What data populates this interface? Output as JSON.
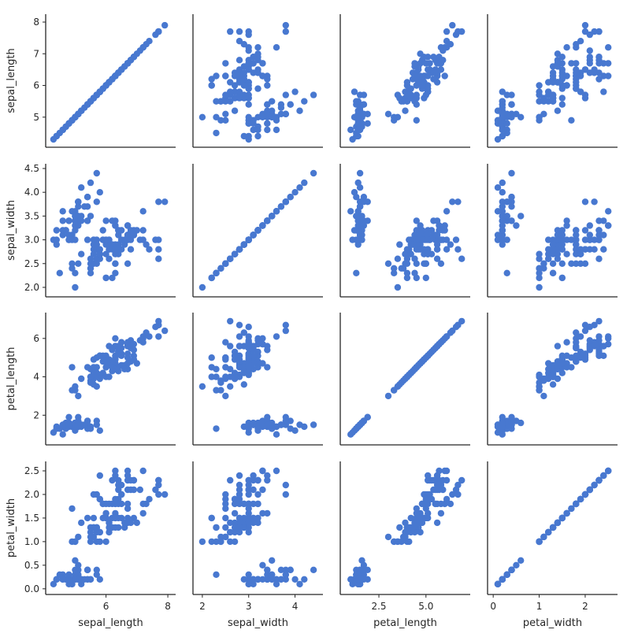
{
  "chart_data": {
    "type": "scatter",
    "kind": "pairgrid",
    "color": "#4878d0",
    "variables": [
      "sepal_length",
      "sepal_width",
      "petal_length",
      "petal_width"
    ],
    "limits": {
      "sepal_length": [
        4.2,
        8.1
      ],
      "sepal_width": [
        1.9,
        4.5
      ],
      "petal_length": [
        0.7,
        7.1
      ],
      "petal_width": [
        -0.02,
        2.6
      ]
    },
    "ticks": {
      "row": {
        "sepal_length": [
          "5",
          "6",
          "7",
          "8"
        ],
        "sepal_width": [
          "2.0",
          "2.5",
          "3.0",
          "3.5",
          "4.0",
          "4.5"
        ],
        "petal_length": [
          "2",
          "4",
          "6"
        ],
        "petal_width": [
          "0.0",
          "0.5",
          "1.0",
          "1.5",
          "2.0",
          "2.5"
        ]
      },
      "col": {
        "sepal_length": [
          "6",
          "8"
        ],
        "sepal_width": [
          "2",
          "3",
          "4"
        ],
        "petal_length": [
          "2.5",
          "5.0"
        ],
        "petal_width": [
          "0",
          "1",
          "2"
        ]
      }
    },
    "data": {
      "sepal_length": [
        5.1,
        4.9,
        4.7,
        4.6,
        5.0,
        5.4,
        4.6,
        5.0,
        4.4,
        4.9,
        5.4,
        4.8,
        4.8,
        4.3,
        5.8,
        5.7,
        5.4,
        5.1,
        5.7,
        5.1,
        5.4,
        5.1,
        4.6,
        5.1,
        4.8,
        5.0,
        5.0,
        5.2,
        5.2,
        4.7,
        4.8,
        5.4,
        5.2,
        5.5,
        4.9,
        5.0,
        5.5,
        4.9,
        4.4,
        5.1,
        5.0,
        4.5,
        4.4,
        5.0,
        5.1,
        4.8,
        5.1,
        4.6,
        5.3,
        5.0,
        7.0,
        6.4,
        6.9,
        5.5,
        6.5,
        5.7,
        6.3,
        4.9,
        6.6,
        5.2,
        5.0,
        5.9,
        6.0,
        6.1,
        5.6,
        6.7,
        5.6,
        5.8,
        6.2,
        5.6,
        5.9,
        6.1,
        6.3,
        6.1,
        6.4,
        6.6,
        6.8,
        6.7,
        6.0,
        5.7,
        5.5,
        5.5,
        5.8,
        6.0,
        5.4,
        6.0,
        6.7,
        6.3,
        5.6,
        5.5,
        5.5,
        6.1,
        5.8,
        5.0,
        5.6,
        5.7,
        5.7,
        6.2,
        5.1,
        5.7,
        6.3,
        5.8,
        7.1,
        6.3,
        6.5,
        7.6,
        4.9,
        7.3,
        6.7,
        7.2,
        6.5,
        6.4,
        6.8,
        5.7,
        5.8,
        6.4,
        6.5,
        7.7,
        7.7,
        6.0,
        6.9,
        5.6,
        7.7,
        6.3,
        6.7,
        7.2,
        6.2,
        6.1,
        6.4,
        7.2,
        7.4,
        7.9,
        6.4,
        6.3,
        6.1,
        7.7,
        6.3,
        6.4,
        6.0,
        6.9,
        6.7,
        6.9,
        5.8,
        6.8,
        6.7,
        6.7,
        6.3,
        6.5,
        6.2,
        5.9
      ],
      "sepal_width": [
        3.5,
        3.0,
        3.2,
        3.1,
        3.6,
        3.9,
        3.4,
        3.4,
        2.9,
        3.1,
        3.7,
        3.4,
        3.0,
        3.0,
        4.0,
        4.4,
        3.9,
        3.5,
        3.8,
        3.8,
        3.4,
        3.7,
        3.6,
        3.3,
        3.4,
        3.0,
        3.4,
        3.5,
        3.4,
        3.2,
        3.1,
        3.4,
        4.1,
        4.2,
        3.1,
        3.2,
        3.5,
        3.6,
        3.0,
        3.4,
        3.5,
        2.3,
        3.2,
        3.5,
        3.8,
        3.0,
        3.8,
        3.2,
        3.7,
        3.3,
        3.2,
        3.2,
        3.1,
        2.3,
        2.8,
        2.8,
        3.3,
        2.4,
        2.9,
        2.7,
        2.0,
        3.0,
        2.2,
        2.9,
        2.9,
        3.1,
        3.0,
        2.7,
        2.2,
        2.5,
        3.2,
        2.8,
        2.5,
        2.8,
        2.9,
        3.0,
        2.8,
        3.0,
        2.9,
        2.6,
        2.4,
        2.4,
        2.7,
        2.7,
        3.0,
        3.4,
        3.1,
        2.3,
        3.0,
        2.5,
        2.6,
        3.0,
        2.6,
        2.3,
        2.7,
        3.0,
        2.9,
        2.9,
        2.5,
        2.8,
        3.3,
        2.7,
        3.0,
        2.9,
        3.0,
        3.0,
        2.5,
        2.9,
        2.5,
        3.6,
        3.2,
        2.7,
        3.0,
        2.5,
        2.8,
        3.2,
        3.0,
        3.8,
        2.6,
        2.2,
        3.2,
        2.8,
        2.8,
        2.7,
        3.3,
        3.2,
        2.8,
        3.0,
        2.8,
        3.0,
        2.8,
        3.8,
        2.8,
        2.8,
        2.6,
        3.0,
        3.4,
        3.1,
        3.0,
        3.1,
        3.1,
        3.1,
        2.7,
        3.2,
        3.3,
        3.0,
        2.5,
        3.0,
        3.4,
        3.0
      ],
      "petal_length": [
        1.4,
        1.4,
        1.3,
        1.5,
        1.4,
        1.7,
        1.4,
        1.5,
        1.4,
        1.5,
        1.5,
        1.6,
        1.4,
        1.1,
        1.2,
        1.5,
        1.3,
        1.4,
        1.7,
        1.5,
        1.7,
        1.5,
        1.0,
        1.7,
        1.9,
        1.6,
        1.6,
        1.5,
        1.4,
        1.6,
        1.6,
        1.5,
        1.5,
        1.4,
        1.5,
        1.2,
        1.3,
        1.4,
        1.3,
        1.5,
        1.3,
        1.3,
        1.3,
        1.6,
        1.9,
        1.4,
        1.6,
        1.4,
        1.5,
        1.4,
        4.7,
        4.5,
        4.9,
        4.0,
        4.6,
        4.5,
        4.7,
        3.3,
        4.6,
        3.9,
        3.5,
        4.2,
        4.0,
        4.7,
        3.6,
        4.4,
        4.5,
        4.1,
        4.5,
        3.9,
        4.8,
        4.0,
        4.9,
        4.7,
        4.3,
        4.4,
        4.8,
        5.0,
        4.5,
        3.5,
        3.8,
        3.7,
        3.9,
        5.1,
        4.5,
        4.5,
        4.7,
        4.4,
        4.1,
        4.0,
        4.4,
        4.6,
        4.0,
        3.3,
        4.2,
        4.2,
        4.2,
        4.3,
        3.0,
        4.1,
        6.0,
        5.1,
        5.9,
        5.6,
        5.8,
        6.6,
        4.5,
        6.3,
        5.8,
        6.1,
        5.1,
        5.3,
        5.5,
        5.0,
        5.1,
        5.3,
        5.5,
        6.7,
        6.9,
        5.0,
        5.7,
        4.9,
        6.7,
        4.9,
        5.7,
        6.0,
        4.8,
        4.9,
        5.6,
        5.8,
        6.1,
        6.4,
        5.6,
        5.1,
        5.6,
        6.1,
        5.6,
        5.5,
        4.8,
        5.4,
        5.6,
        5.1,
        5.1,
        5.9,
        5.7,
        5.2,
        5.0,
        5.2,
        5.4,
        5.1
      ],
      "petal_width": [
        0.2,
        0.2,
        0.2,
        0.2,
        0.2,
        0.4,
        0.3,
        0.2,
        0.2,
        0.1,
        0.2,
        0.2,
        0.1,
        0.1,
        0.2,
        0.4,
        0.4,
        0.3,
        0.3,
        0.3,
        0.2,
        0.4,
        0.2,
        0.5,
        0.2,
        0.2,
        0.4,
        0.2,
        0.2,
        0.2,
        0.2,
        0.4,
        0.1,
        0.2,
        0.2,
        0.2,
        0.2,
        0.1,
        0.2,
        0.2,
        0.3,
        0.3,
        0.2,
        0.6,
        0.4,
        0.3,
        0.2,
        0.2,
        0.2,
        0.2,
        1.4,
        1.5,
        1.5,
        1.3,
        1.5,
        1.3,
        1.6,
        1.0,
        1.3,
        1.4,
        1.0,
        1.5,
        1.0,
        1.4,
        1.3,
        1.4,
        1.5,
        1.0,
        1.5,
        1.1,
        1.8,
        1.3,
        1.5,
        1.2,
        1.3,
        1.4,
        1.4,
        1.7,
        1.5,
        1.0,
        1.1,
        1.0,
        1.2,
        1.6,
        1.5,
        1.6,
        1.5,
        1.3,
        1.3,
        1.3,
        1.2,
        1.4,
        1.2,
        1.0,
        1.3,
        1.2,
        1.3,
        1.3,
        1.1,
        1.3,
        2.5,
        1.9,
        2.1,
        1.8,
        2.2,
        2.1,
        1.7,
        1.8,
        1.8,
        2.5,
        2.0,
        1.9,
        2.1,
        2.0,
        2.4,
        2.3,
        1.8,
        2.2,
        2.3,
        1.5,
        2.3,
        2.0,
        2.0,
        1.8,
        2.1,
        1.8,
        1.8,
        1.8,
        2.1,
        1.6,
        1.9,
        2.0,
        2.2,
        1.5,
        1.4,
        2.3,
        2.4,
        1.8,
        1.8,
        2.1,
        2.4,
        2.3,
        1.9,
        2.3,
        2.5,
        2.3,
        1.9,
        2.0,
        2.3,
        1.8
      ]
    }
  }
}
